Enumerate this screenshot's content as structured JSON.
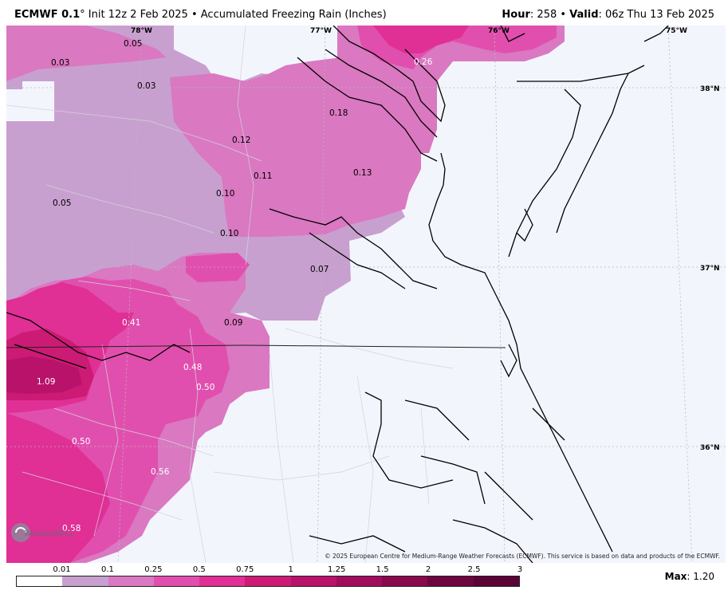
{
  "header": {
    "model": "ECMWF 0.1",
    "deg": "°",
    "init": " Init 12z 2 Feb 2025",
    "sep": " • ",
    "product": "Accumulated Freezing Rain (Inches)",
    "hour_label": "Hour",
    "hour_value": ": 258 • ",
    "valid_label": "Valid",
    "valid_value": ": 06z Thu 13 Feb 2025"
  },
  "map": {
    "lon_labels": [
      "78°W",
      "77°W",
      "76°W",
      "75°W"
    ],
    "lat_labels": [
      "38°N",
      "37°N",
      "36°N"
    ],
    "values": [
      "0.05",
      "0.03",
      "0.03",
      "0.26",
      "0.18",
      "0.12",
      "0.13",
      "0.11",
      "0.10",
      "0.05",
      "0.10",
      "0.07",
      "0.41",
      "0.09",
      "0.48",
      "1.09",
      "0.50",
      "0.50",
      "0.56",
      "0.58"
    ],
    "credit": "© 2025 European Centre for Medium-Range Weather Forecasts (ECMWF). This service is based on data and products of the ECMWF.",
    "logo_text": "WeatherBELL"
  },
  "legend": {
    "ticks": [
      "0.01",
      "0.1",
      "0.25",
      "0.5",
      "0.75",
      "1",
      "1.25",
      "1.5",
      "2",
      "2.5",
      "3"
    ],
    "colors": [
      "#ffffff",
      "#c8a0cf",
      "#da78c1",
      "#e14fae",
      "#e02f95",
      "#cc1b74",
      "#b8126a",
      "#a00d5c",
      "#880a4c",
      "#6d0640",
      "#5a0335"
    ]
  },
  "max": {
    "label": "Max",
    "value": ": 1.20"
  }
}
